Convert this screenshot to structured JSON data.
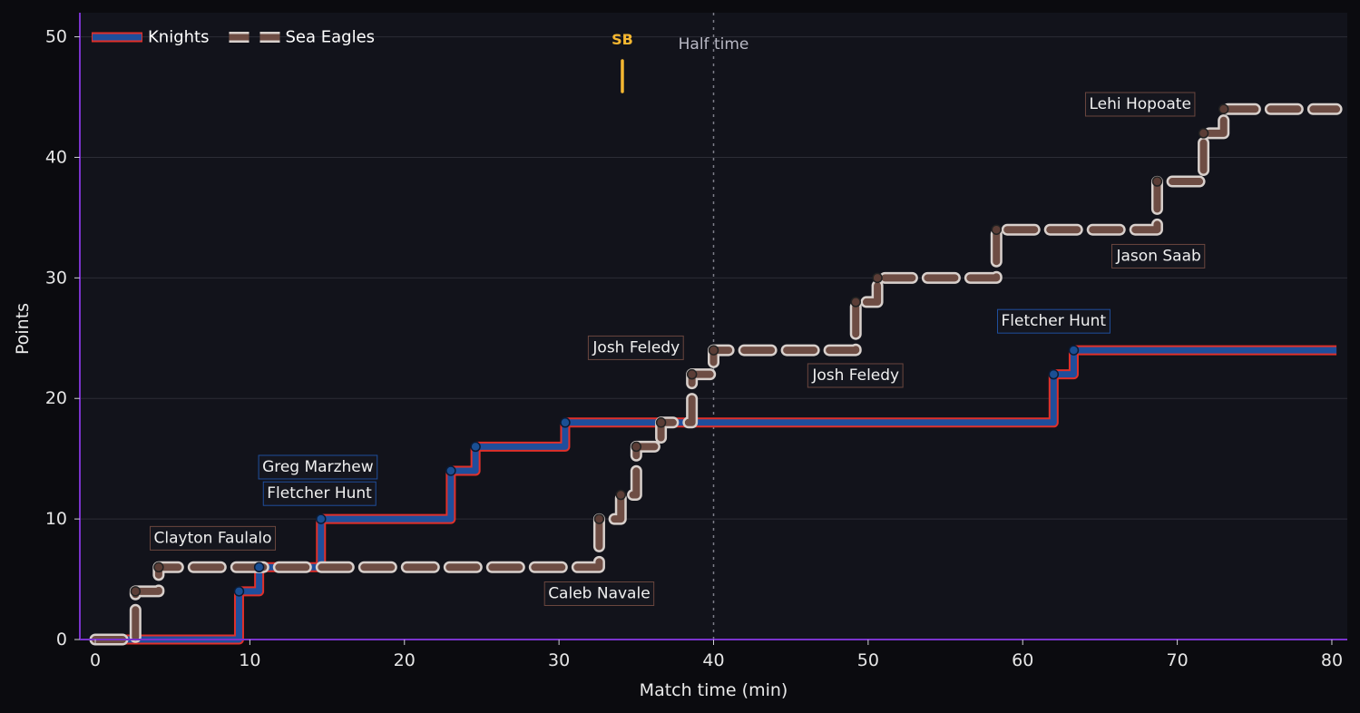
{
  "chart_data": {
    "type": "line",
    "step": true,
    "xlabel": "Match time (min)",
    "ylabel": "Points",
    "xlim": [
      -1,
      81
    ],
    "ylim": [
      0,
      52
    ],
    "x_ticks": [
      0,
      10,
      20,
      30,
      40,
      50,
      60,
      70,
      80
    ],
    "y_ticks": [
      0,
      10,
      20,
      30,
      40,
      50
    ],
    "grid": "horizontal",
    "legend_position": "top-left",
    "series": [
      {
        "name": "Knights",
        "style": "solid",
        "color": "#1f4e9c",
        "edge_color": "#e0302a",
        "points": [
          [
            0,
            0
          ],
          [
            9.3,
            4
          ],
          [
            10.6,
            6
          ],
          [
            14.6,
            10
          ],
          [
            23.0,
            14
          ],
          [
            24.6,
            16
          ],
          [
            30.4,
            18
          ],
          [
            62.0,
            22
          ],
          [
            63.3,
            24
          ],
          [
            80.3,
            24
          ]
        ]
      },
      {
        "name": "Sea Eagles",
        "style": "dashed",
        "color": "#6e4d44",
        "edge_color": "#d8d0cc",
        "points": [
          [
            0,
            0
          ],
          [
            2.6,
            4
          ],
          [
            4.1,
            6
          ],
          [
            32.6,
            10
          ],
          [
            34.0,
            12
          ],
          [
            35.0,
            16
          ],
          [
            36.6,
            18
          ],
          [
            38.6,
            22
          ],
          [
            40.0,
            24
          ],
          [
            49.2,
            28
          ],
          [
            50.6,
            30
          ],
          [
            58.3,
            34
          ],
          [
            68.7,
            38
          ],
          [
            71.7,
            42
          ],
          [
            73.0,
            44
          ],
          [
            80.3,
            44
          ]
        ]
      }
    ],
    "annotations": [
      {
        "text": "Clayton Faulalo",
        "x": 7.6,
        "y": 8.4,
        "team": "Sea Eagles"
      },
      {
        "text": "Greg Marzhew",
        "x": 14.4,
        "y": 14.3,
        "team": "Knights"
      },
      {
        "text": "Fletcher Hunt",
        "x": 14.5,
        "y": 12.1,
        "team": "Knights"
      },
      {
        "text": "Caleb Navale",
        "x": 32.6,
        "y": 3.8,
        "team": "Sea Eagles"
      },
      {
        "text": "Josh Feledy",
        "x": 35.0,
        "y": 24.2,
        "team": "Sea Eagles"
      },
      {
        "text": "Josh Feledy",
        "x": 49.2,
        "y": 21.9,
        "team": "Sea Eagles"
      },
      {
        "text": "Fletcher Hunt",
        "x": 62.0,
        "y": 26.4,
        "team": "Knights"
      },
      {
        "text": "Jason Saab",
        "x": 68.8,
        "y": 31.8,
        "team": "Sea Eagles"
      },
      {
        "text": "Lehi Hopoate",
        "x": 67.6,
        "y": 44.4,
        "team": "Sea Eagles"
      }
    ],
    "events": [
      {
        "text": "SB",
        "x": 34.1,
        "color": "#f5b731"
      }
    ],
    "reference_lines": [
      {
        "text": "Half time",
        "x": 40
      }
    ]
  },
  "colors": {
    "background": "#0b0b0f",
    "plot_background": "#12131b",
    "frame": "#7a33cc",
    "grid": "#2c2d36"
  }
}
